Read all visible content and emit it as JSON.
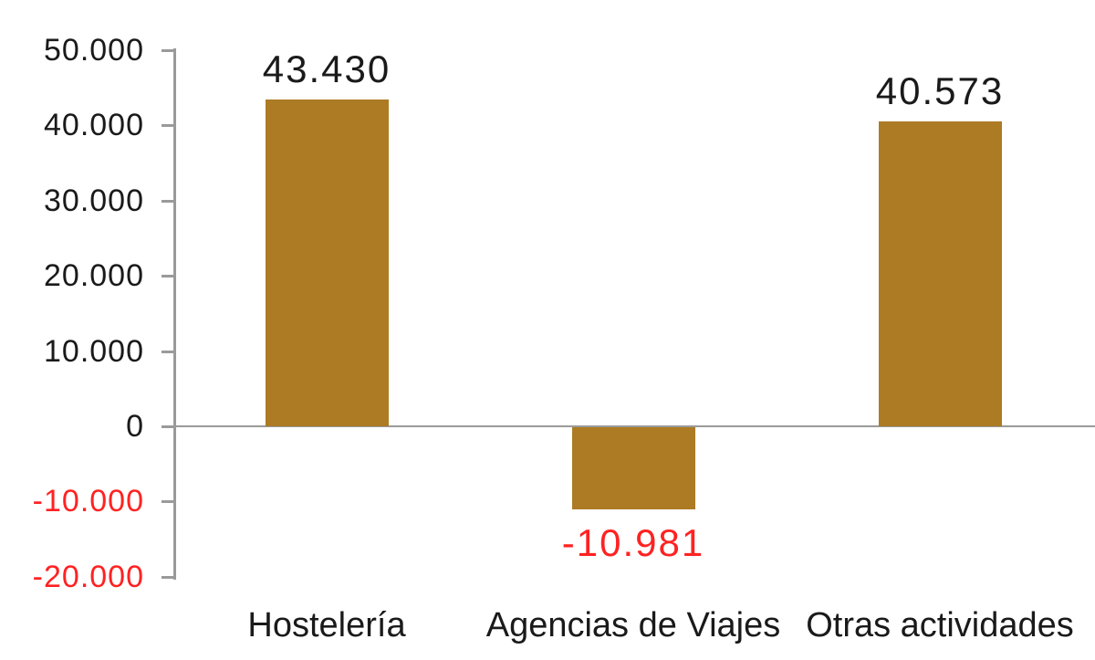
{
  "chart_data": {
    "type": "bar",
    "title": "",
    "xlabel": "",
    "ylabel": "",
    "categories": [
      "Hostelería",
      "Agencias de Viajes",
      "Otras actividades"
    ],
    "values": [
      43430,
      -10981,
      40573
    ],
    "data_labels": [
      "43.430",
      "-10.981",
      "40.573"
    ],
    "y_axis": {
      "ylim": [
        -20000,
        50000
      ],
      "tick_step": 10000,
      "ticks": [
        {
          "label": "50.000",
          "value": 50000
        },
        {
          "label": "40.000",
          "value": 40000
        },
        {
          "label": "30.000",
          "value": 30000
        },
        {
          "label": "20.000",
          "value": 20000
        },
        {
          "label": "10.000",
          "value": 10000
        },
        {
          "label": "0",
          "value": 0
        },
        {
          "label": "-10.000",
          "value": -10000
        },
        {
          "label": "-20.000",
          "value": -20000
        }
      ]
    },
    "legend": null,
    "grid": false,
    "colors": {
      "bar_fill": "#AC7B24",
      "positive_text": "#1A1A1A",
      "negative_text": "#FF2222",
      "axis_line": "#9A9A9A",
      "background": "#FFFFFF"
    }
  }
}
